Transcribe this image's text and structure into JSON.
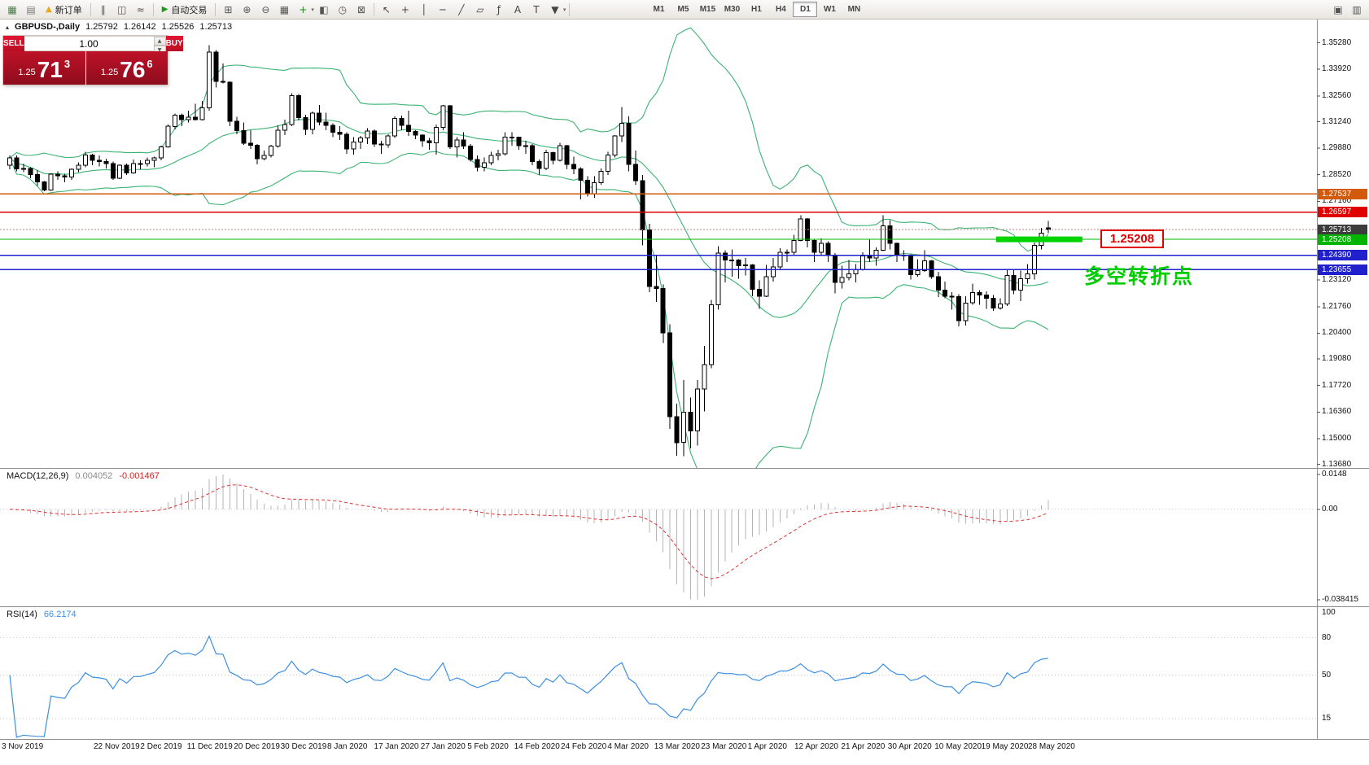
{
  "colors": {
    "bb": "#3cb371",
    "candle_up": "#ffffff",
    "candle_down": "#000000",
    "macd_hist": "#b4b4b4",
    "macd_signal": "#dd3333",
    "rsi_line": "#3d8fe0",
    "level_orange": "#d25a0a",
    "level_red": "#e00000",
    "level_green": "#00b400",
    "level_blue": "#2020cc",
    "current_badge": "#3c3c3c",
    "highlight_green": "#00d400",
    "annotation_red": "#e00000",
    "annotation_green": "#00cc00"
  },
  "toolbar": {
    "new_order_label": "新订单",
    "auto_trading_label": "自动交易",
    "left_icons": [
      {
        "name": "new-chart-icon",
        "glyph": "▦",
        "color": "#4a7d4a"
      },
      {
        "name": "profiles-icon",
        "glyph": "▤",
        "color": "#777777"
      }
    ],
    "chart_type_icons": [
      {
        "name": "bar-chart-icon",
        "glyph": "∥",
        "color": "#555555"
      },
      {
        "name": "candlestick-chart-icon",
        "glyph": "◫",
        "color": "#555555"
      },
      {
        "name": "line-chart-icon",
        "glyph": "≈",
        "color": "#555555"
      }
    ],
    "tool_icons": [
      {
        "name": "tile-windows-icon",
        "glyph": "⊞",
        "color": "#555555"
      },
      {
        "name": "zoom-in-icon",
        "glyph": "⊕",
        "color": "#555555"
      },
      {
        "name": "zoom-out-icon",
        "glyph": "⊖",
        "color": "#555555"
      },
      {
        "name": "grid-icon",
        "glyph": "▦",
        "color": "#555555"
      },
      {
        "name": "indicators-icon",
        "glyph": "+",
        "color": "#1a8a1a"
      },
      {
        "name": "templates-icon",
        "glyph": "◧",
        "color": "#555555"
      },
      {
        "name": "clock-icon",
        "glyph": "◷",
        "color": "#555555"
      },
      {
        "name": "alerts-icon",
        "glyph": "⊠",
        "color": "#555555"
      }
    ],
    "draw_icons": [
      {
        "name": "cursor-icon",
        "glyph": "↖",
        "color": "#444444"
      },
      {
        "name": "crosshair-icon",
        "glyph": "+",
        "color": "#444444"
      },
      {
        "name": "vertical-line-icon",
        "glyph": "│",
        "color": "#444444"
      },
      {
        "name": "horizontal-line-icon",
        "glyph": "─",
        "color": "#444444"
      },
      {
        "name": "trendline-icon",
        "glyph": "╱",
        "color": "#444444"
      },
      {
        "name": "channel-icon",
        "glyph": "▱",
        "color": "#444444"
      },
      {
        "name": "fibonacci-icon",
        "glyph": "ƒ",
        "color": "#444444"
      },
      {
        "name": "text-icon",
        "glyph": "A",
        "color": "#444444"
      },
      {
        "name": "text-label-icon",
        "glyph": "T",
        "color": "#444444"
      },
      {
        "name": "arrows-icon",
        "glyph": "▼",
        "color": "#444444"
      }
    ],
    "timeframes": [
      "M1",
      "M5",
      "M15",
      "M30",
      "H1",
      "H4",
      "D1",
      "W1",
      "MN"
    ],
    "active_timeframe": "D1",
    "right_icons": [
      {
        "name": "chart-window-icon",
        "glyph": "▣",
        "color": "#555555"
      },
      {
        "name": "window-list-icon",
        "glyph": "▥",
        "color": "#555555"
      }
    ]
  },
  "chart_header": {
    "symbol_period": "GBPUSD-,Daily",
    "open": "1.25792",
    "high": "1.26142",
    "low": "1.25526",
    "close": "1.25713"
  },
  "trade_panel": {
    "sell_label": "SELL",
    "buy_label": "BUY",
    "volume": "1.00",
    "sell_small": "1.25",
    "sell_big": "71",
    "sell_sup": "3",
    "buy_small": "1.25",
    "buy_big": "76",
    "buy_sup": "6"
  },
  "price_axis": {
    "ticks": [
      "1.35280",
      "1.33920",
      "1.32560",
      "1.31240",
      "1.29880",
      "1.28520",
      "1.27160",
      "1.23120",
      "1.21760",
      "1.20400",
      "1.19080",
      "1.17720",
      "1.16360",
      "1.15000",
      "1.13680"
    ],
    "badges": [
      {
        "value": "1.27537",
        "price": 1.27537,
        "color": "#d25a0a"
      },
      {
        "value": "1.26597",
        "price": 1.26597,
        "color": "#e00000"
      },
      {
        "value": "1.25713",
        "price": 1.25713,
        "color": "#3c3c3c"
      },
      {
        "value": "1.25208",
        "price": 1.25208,
        "color": "#00b400"
      },
      {
        "value": "1.24390",
        "price": 1.2439,
        "color": "#2020cc"
      },
      {
        "value": "1.23655",
        "price": 1.23655,
        "color": "#2020cc"
      }
    ]
  },
  "levels": [
    {
      "price": 1.27537,
      "color": "#d25a0a",
      "style": "solid",
      "width": 1.2
    },
    {
      "price": 1.26597,
      "color": "#e00000",
      "style": "solid",
      "width": 1.2
    },
    {
      "price": 1.25713,
      "color": "#c08080",
      "style": "dotted",
      "width": 1
    },
    {
      "price": 1.25208,
      "color": "#00b400",
      "style": "solid",
      "width": 1.2
    },
    {
      "price": 1.2439,
      "color": "#2020cc",
      "style": "solid",
      "width": 1.5
    },
    {
      "price": 1.23655,
      "color": "#2020cc",
      "style": "solid",
      "width": 1.5
    }
  ],
  "annotations": {
    "price_label": "1.25208",
    "turning_point": "多空转折点",
    "highlight_segment_price": 1.25208
  },
  "macd": {
    "name": "MACD(12,26,9)",
    "value_main": "0.004052",
    "value_signal": "-0.001467",
    "axis": [
      "0.0148",
      "0.00",
      "-0.038415"
    ]
  },
  "rsi": {
    "name": "RSI(14)",
    "value": "66.2174",
    "axis_top": "100",
    "levels": [
      "80",
      "50",
      "15"
    ]
  },
  "date_axis": [
    "3 Nov 2019",
    "22 Nov 2019",
    "2 Dec 2019",
    "11 Dec 2019",
    "20 Dec 2019",
    "30 Dec 2019",
    "8 Jan 2020",
    "17 Jan 2020",
    "27 Jan 2020",
    "5 Feb 2020",
    "14 Feb 2020",
    "24 Feb 2020",
    "4 Mar 2020",
    "13 Mar 2020",
    "23 Mar 2020",
    "1 Apr 2020",
    "12 Apr 2020",
    "21 Apr 2020",
    "30 Apr 2020",
    "10 May 2020",
    "19 May 2020",
    "28 May 2020"
  ],
  "chart_data": {
    "type": "candlestick",
    "title": "GBPUSD-,Daily",
    "indicators": [
      "Bollinger Bands(20,2)",
      "MACD(12,26,9)",
      "RSI(14)"
    ],
    "y_range": [
      1.1368,
      1.3528
    ],
    "horizontal_levels": [
      1.27537,
      1.26597,
      1.25713,
      1.25208,
      1.2439,
      1.23655
    ],
    "macd_axis_range": [
      0.0148,
      -0.038415
    ],
    "rsi_last": 66.2174,
    "macd_last": 0.004052,
    "signal_last": -0.001467,
    "candles": [
      [
        1.29,
        1.295,
        1.288,
        1.2938
      ],
      [
        1.2938,
        1.295,
        1.287,
        1.2883
      ],
      [
        1.2883,
        1.291,
        1.2865,
        1.2884
      ],
      [
        1.2884,
        1.289,
        1.2835,
        1.2853
      ],
      [
        1.2853,
        1.2875,
        1.2794,
        1.2815
      ],
      [
        1.2815,
        1.282,
        1.2768,
        1.2774
      ],
      [
        1.2774,
        1.286,
        1.277,
        1.2855
      ],
      [
        1.2855,
        1.287,
        1.2825,
        1.2846
      ],
      [
        1.2846,
        1.2858,
        1.2814,
        1.284
      ],
      [
        1.284,
        1.2885,
        1.2825,
        1.288
      ],
      [
        1.288,
        1.2915,
        1.2865,
        1.29
      ],
      [
        1.29,
        1.297,
        1.289,
        1.2952
      ],
      [
        1.2952,
        1.296,
        1.29,
        1.2925
      ],
      [
        1.2925,
        1.295,
        1.2895,
        1.292
      ],
      [
        1.292,
        1.2935,
        1.2885,
        1.291
      ],
      [
        1.291,
        1.292,
        1.2825,
        1.2834
      ],
      [
        1.2834,
        1.2905,
        1.283,
        1.29
      ],
      [
        1.29,
        1.291,
        1.285,
        1.2862
      ],
      [
        1.2862,
        1.293,
        1.2858,
        1.291
      ],
      [
        1.291,
        1.2925,
        1.288,
        1.291
      ],
      [
        1.291,
        1.294,
        1.2895,
        1.2925
      ],
      [
        1.2925,
        1.2945,
        1.289,
        1.2938
      ],
      [
        1.2938,
        1.3,
        1.2925,
        1.2995
      ],
      [
        1.2995,
        1.311,
        1.299,
        1.31
      ],
      [
        1.31,
        1.3165,
        1.3085,
        1.3157
      ],
      [
        1.3157,
        1.3165,
        1.31,
        1.3135
      ],
      [
        1.3135,
        1.318,
        1.312,
        1.3147
      ],
      [
        1.3147,
        1.3215,
        1.313,
        1.3135
      ],
      [
        1.3135,
        1.323,
        1.313,
        1.3195
      ],
      [
        1.3195,
        1.3515,
        1.318,
        1.348
      ],
      [
        1.348,
        1.349,
        1.33,
        1.333
      ],
      [
        1.333,
        1.3422,
        1.332,
        1.3327
      ],
      [
        1.3327,
        1.333,
        1.31,
        1.3125
      ],
      [
        1.3125,
        1.3148,
        1.306,
        1.3078
      ],
      [
        1.3078,
        1.312,
        1.3005,
        1.3013
      ],
      [
        1.3013,
        1.308,
        1.2985,
        1.3003
      ],
      [
        1.3003,
        1.301,
        1.2905,
        1.2935
      ],
      [
        1.2935,
        1.2975,
        1.2925,
        1.295
      ],
      [
        1.295,
        1.3005,
        1.294,
        1.2998
      ],
      [
        1.2998,
        1.3105,
        1.299,
        1.308
      ],
      [
        1.308,
        1.3135,
        1.3055,
        1.311
      ],
      [
        1.311,
        1.327,
        1.31,
        1.3257
      ],
      [
        1.3257,
        1.3265,
        1.313,
        1.3145
      ],
      [
        1.3145,
        1.316,
        1.3055,
        1.3085
      ],
      [
        1.3085,
        1.3175,
        1.306,
        1.3168
      ],
      [
        1.3168,
        1.321,
        1.3105,
        1.3122
      ],
      [
        1.3122,
        1.317,
        1.308,
        1.3105
      ],
      [
        1.3105,
        1.3115,
        1.3045,
        1.307
      ],
      [
        1.307,
        1.31,
        1.303,
        1.306
      ],
      [
        1.306,
        1.307,
        1.296,
        1.2985
      ],
      [
        1.2985,
        1.3045,
        1.2955,
        1.302
      ],
      [
        1.302,
        1.305,
        1.2985,
        1.304
      ],
      [
        1.304,
        1.309,
        1.301,
        1.3075
      ],
      [
        1.3075,
        1.3085,
        1.2995,
        1.301
      ],
      [
        1.301,
        1.3025,
        1.296,
        1.3005
      ],
      [
        1.3005,
        1.306,
        1.299,
        1.305
      ],
      [
        1.305,
        1.315,
        1.304,
        1.314
      ],
      [
        1.314,
        1.3155,
        1.308,
        1.3105
      ],
      [
        1.3105,
        1.318,
        1.305,
        1.3073
      ],
      [
        1.3073,
        1.308,
        1.3035,
        1.3055
      ],
      [
        1.3055,
        1.306,
        1.2995,
        1.3025
      ],
      [
        1.3025,
        1.304,
        1.298,
        1.3015
      ],
      [
        1.3015,
        1.311,
        1.2955,
        1.3095
      ],
      [
        1.3095,
        1.321,
        1.308,
        1.3205
      ],
      [
        1.3205,
        1.321,
        1.2985,
        1.2995
      ],
      [
        1.2995,
        1.3045,
        1.294,
        1.303
      ],
      [
        1.303,
        1.307,
        1.2985,
        1.2998
      ],
      [
        1.2998,
        1.301,
        1.292,
        1.293
      ],
      [
        1.293,
        1.295,
        1.287,
        1.289
      ],
      [
        1.289,
        1.294,
        1.287,
        1.2913
      ],
      [
        1.2913,
        1.297,
        1.29,
        1.295
      ],
      [
        1.295,
        1.298,
        1.2925,
        1.296
      ],
      [
        1.296,
        1.307,
        1.295,
        1.3045
      ],
      [
        1.3045,
        1.307,
        1.3,
        1.3045
      ],
      [
        1.3045,
        1.3045,
        1.298,
        1.3
      ],
      [
        1.3,
        1.3025,
        1.296,
        1.3
      ],
      [
        1.3,
        1.301,
        1.29,
        1.292
      ],
      [
        1.292,
        1.293,
        1.285,
        1.2885
      ],
      [
        1.2885,
        1.298,
        1.2875,
        1.2965
      ],
      [
        1.2965,
        1.297,
        1.2905,
        1.2925
      ],
      [
        1.2925,
        1.3015,
        1.292,
        1.3
      ],
      [
        1.3,
        1.3005,
        1.288,
        1.2905
      ],
      [
        1.2905,
        1.2945,
        1.2855,
        1.2883
      ],
      [
        1.2883,
        1.289,
        1.2725,
        1.2823
      ],
      [
        1.2823,
        1.2845,
        1.274,
        1.2753
      ],
      [
        1.2753,
        1.2845,
        1.2735,
        1.2812
      ],
      [
        1.2812,
        1.2885,
        1.28,
        1.287
      ],
      [
        1.287,
        1.297,
        1.285,
        1.2953
      ],
      [
        1.2953,
        1.3055,
        1.294,
        1.305
      ],
      [
        1.305,
        1.32,
        1.302,
        1.3115
      ],
      [
        1.3115,
        1.315,
        1.287,
        1.2905
      ],
      [
        1.2905,
        1.2975,
        1.28,
        1.2822
      ],
      [
        1.2822,
        1.285,
        1.249,
        1.257
      ],
      [
        1.257,
        1.26,
        1.225,
        1.228
      ],
      [
        1.228,
        1.2435,
        1.22,
        1.227
      ],
      [
        1.227,
        1.229,
        1.199,
        1.2042
      ],
      [
        1.2042,
        1.2085,
        1.155,
        1.1612
      ],
      [
        1.1612,
        1.168,
        1.1412,
        1.148
      ],
      [
        1.148,
        1.18,
        1.141,
        1.1635
      ],
      [
        1.1635,
        1.171,
        1.145,
        1.154
      ],
      [
        1.154,
        1.18,
        1.1465,
        1.1755
      ],
      [
        1.1755,
        1.1975,
        1.164,
        1.188
      ],
      [
        1.188,
        1.221,
        1.186,
        1.2185
      ],
      [
        1.2185,
        1.2485,
        1.216,
        1.245
      ],
      [
        1.245,
        1.2465,
        1.23,
        1.2415
      ],
      [
        1.2415,
        1.247,
        1.233,
        1.2415
      ],
      [
        1.2415,
        1.242,
        1.232,
        1.2385
      ],
      [
        1.2385,
        1.2425,
        1.2335,
        1.239
      ],
      [
        1.239,
        1.2395,
        1.223,
        1.2265
      ],
      [
        1.2265,
        1.231,
        1.2165,
        1.223
      ],
      [
        1.223,
        1.239,
        1.2225,
        1.233
      ],
      [
        1.233,
        1.2425,
        1.2305,
        1.238
      ],
      [
        1.238,
        1.2475,
        1.2365,
        1.2455
      ],
      [
        1.2455,
        1.247,
        1.2405,
        1.2455
      ],
      [
        1.2455,
        1.2545,
        1.244,
        1.2515
      ],
      [
        1.2515,
        1.2645,
        1.251,
        1.2625
      ],
      [
        1.2625,
        1.263,
        1.248,
        1.2515
      ],
      [
        1.2515,
        1.252,
        1.2405,
        1.2455
      ],
      [
        1.2455,
        1.2525,
        1.2435,
        1.25
      ],
      [
        1.25,
        1.251,
        1.2405,
        1.244
      ],
      [
        1.244,
        1.245,
        1.2245,
        1.23
      ],
      [
        1.23,
        1.2385,
        1.227,
        1.2325
      ],
      [
        1.2325,
        1.2415,
        1.231,
        1.2345
      ],
      [
        1.2345,
        1.2395,
        1.23,
        1.2365
      ],
      [
        1.2365,
        1.2455,
        1.236,
        1.2435
      ],
      [
        1.2435,
        1.252,
        1.2405,
        1.2425
      ],
      [
        1.2425,
        1.248,
        1.2385,
        1.2465
      ],
      [
        1.2465,
        1.2645,
        1.246,
        1.259
      ],
      [
        1.259,
        1.262,
        1.247,
        1.25
      ],
      [
        1.25,
        1.2505,
        1.2405,
        1.244
      ],
      [
        1.244,
        1.2465,
        1.241,
        1.2435
      ],
      [
        1.2435,
        1.2445,
        1.2315,
        1.234
      ],
      [
        1.234,
        1.242,
        1.233,
        1.236
      ],
      [
        1.236,
        1.2465,
        1.2355,
        1.241
      ],
      [
        1.241,
        1.2415,
        1.232,
        1.233
      ],
      [
        1.233,
        1.2355,
        1.2225,
        1.226
      ],
      [
        1.226,
        1.2305,
        1.222,
        1.223
      ],
      [
        1.223,
        1.225,
        1.216,
        1.2228
      ],
      [
        1.2228,
        1.224,
        1.2075,
        1.2105
      ],
      [
        1.2105,
        1.223,
        1.208,
        1.2195
      ],
      [
        1.2195,
        1.2295,
        1.2185,
        1.2248
      ],
      [
        1.2248,
        1.226,
        1.2185,
        1.2235
      ],
      [
        1.2235,
        1.2255,
        1.2165,
        1.222
      ],
      [
        1.222,
        1.2235,
        1.2155,
        1.217
      ],
      [
        1.217,
        1.222,
        1.216,
        1.219
      ],
      [
        1.219,
        1.2365,
        1.218,
        1.2335
      ],
      [
        1.2335,
        1.2365,
        1.224,
        1.226
      ],
      [
        1.226,
        1.236,
        1.2205,
        1.232
      ],
      [
        1.232,
        1.2395,
        1.2295,
        1.2345
      ],
      [
        1.2345,
        1.2505,
        1.2315,
        1.249
      ],
      [
        1.249,
        1.258,
        1.247,
        1.2552
      ],
      [
        1.25792,
        1.26142,
        1.25526,
        1.25713
      ]
    ]
  }
}
